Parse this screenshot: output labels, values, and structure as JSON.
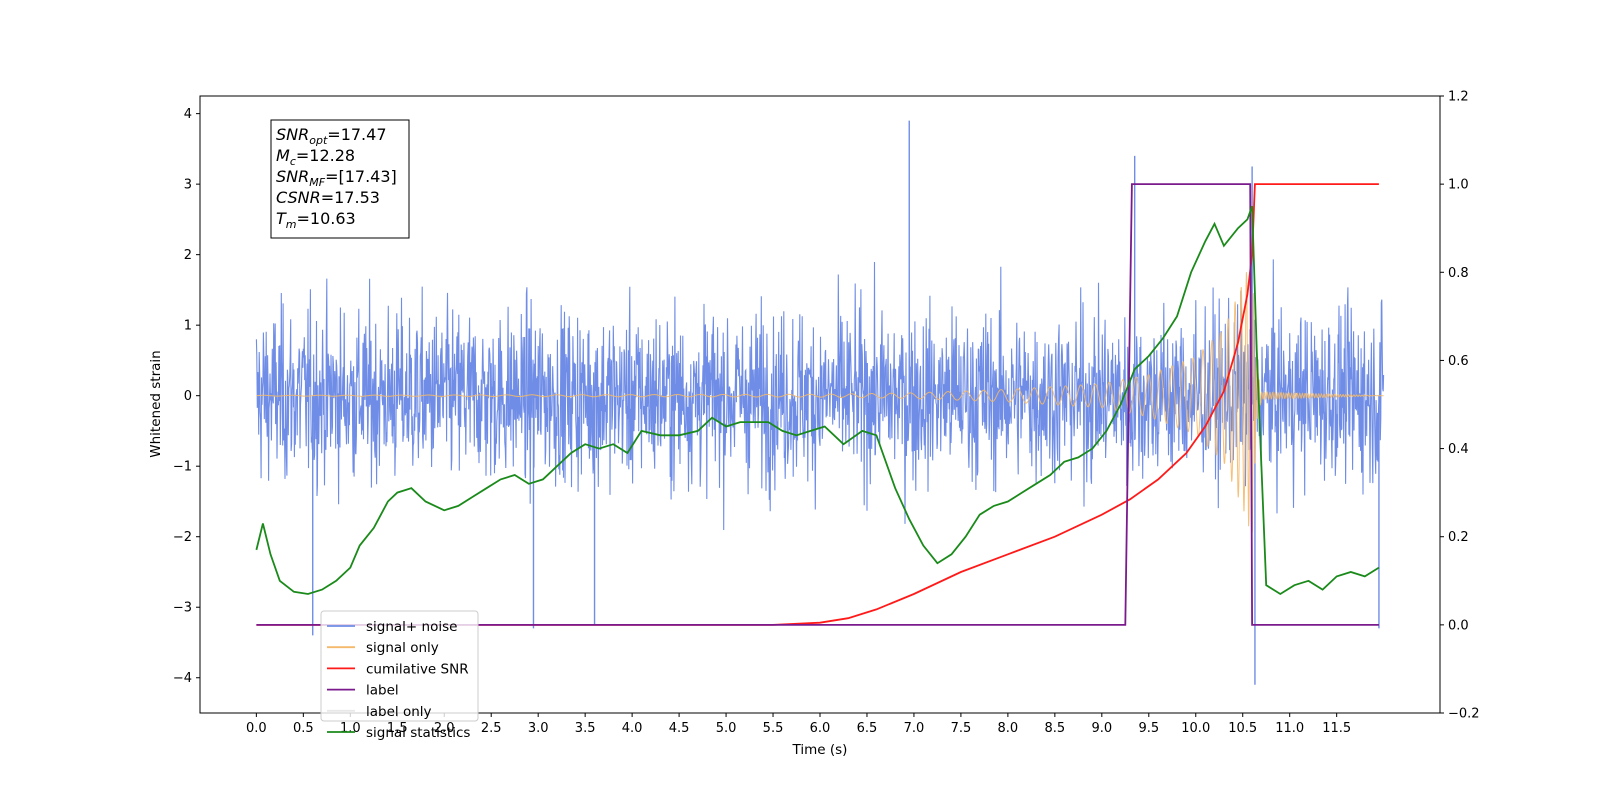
{
  "chart_data": {
    "type": "line",
    "xlabel": "Time (s)",
    "ylabel_left": "Whitened strain",
    "ylabel_right": "",
    "xlim": [
      -0.6,
      12.6
    ],
    "ylim_left": [
      -4.5,
      4.25
    ],
    "ylim_right": [
      -0.2,
      1.2
    ],
    "x_ticks": [
      "0.0",
      "0.5",
      "1.0",
      "1.5",
      "2.0",
      "2.5",
      "3.0",
      "3.5",
      "4.0",
      "4.5",
      "5.0",
      "5.5",
      "6.0",
      "6.5",
      "7.0",
      "7.5",
      "8.0",
      "8.5",
      "9.0",
      "9.5",
      "10.0",
      "10.5",
      "11.0",
      "11.5"
    ],
    "y_ticks_left": [
      "4",
      "3",
      "2",
      "1",
      "0",
      "−1",
      "−2",
      "−3",
      "−4"
    ],
    "y_ticks_right": [
      "1.2",
      "1.0",
      "0.8",
      "0.6",
      "0.4",
      "0.2",
      "0.0",
      "−0.2"
    ],
    "grid": false,
    "legend_position": "lower-left",
    "annotation": {
      "lines": [
        {
          "symbol": "SNR",
          "sub": "opt",
          "value": "=17.47"
        },
        {
          "symbol": "M",
          "sub": "c",
          "value": "=12.28"
        },
        {
          "symbol": "SNR",
          "sub": "MF",
          "value": "=[17.43]"
        },
        {
          "symbol": "CSNR",
          "sub": "",
          "value": "=17.53"
        },
        {
          "symbol": "T",
          "sub": "m",
          "value": "=10.63"
        }
      ]
    },
    "series": [
      {
        "name": "signal+ noise",
        "color": "#6f8de6",
        "axis": "left",
        "kind": "noise",
        "x_range": [
          0.0,
          12.0
        ],
        "envelope": {
          "typical_high": 2.3,
          "typical_low": -2.3,
          "max": 3.9,
          "min": -4.1
        },
        "spikes": [
          {
            "x": 6.95,
            "y": 3.9
          },
          {
            "x": 9.35,
            "y": 3.4
          },
          {
            "x": 10.6,
            "y": 3.25
          },
          {
            "x": 10.63,
            "y": -4.1
          },
          {
            "x": 3.6,
            "y": -3.25
          },
          {
            "x": 0.6,
            "y": -3.4
          },
          {
            "x": 11.95,
            "y": -3.3
          },
          {
            "x": 2.95,
            "y": -3.3
          }
        ]
      },
      {
        "name": "signal only",
        "color": "#f4b96a",
        "axis": "left",
        "kind": "chirp",
        "t_merger": 10.63,
        "amplitude_points": [
          [
            0.0,
            0.005
          ],
          [
            6.0,
            0.02
          ],
          [
            7.0,
            0.04
          ],
          [
            8.0,
            0.09
          ],
          [
            9.0,
            0.17
          ],
          [
            9.5,
            0.3
          ],
          [
            10.0,
            0.55
          ],
          [
            10.3,
            0.95
          ],
          [
            10.5,
            1.6
          ],
          [
            10.6,
            2.0
          ],
          [
            10.65,
            0.4
          ],
          [
            10.7,
            0.05
          ],
          [
            12.0,
            0.0
          ]
        ]
      },
      {
        "name": "cumilative SNR",
        "color": "#ff1a1a",
        "axis": "right",
        "x": [
          0.0,
          5.5,
          6.0,
          6.3,
          6.6,
          7.0,
          7.5,
          8.0,
          8.5,
          9.0,
          9.3,
          9.6,
          9.9,
          10.1,
          10.3,
          10.45,
          10.55,
          10.6,
          10.63,
          11.95
        ],
        "y": [
          0.0,
          0.0,
          0.005,
          0.015,
          0.035,
          0.07,
          0.12,
          0.16,
          0.2,
          0.25,
          0.285,
          0.33,
          0.39,
          0.45,
          0.53,
          0.64,
          0.75,
          0.84,
          1.0,
          1.0
        ]
      },
      {
        "name": "label",
        "color": "#7a1a8c",
        "axis": "right",
        "x": [
          0.0,
          9.25,
          9.32,
          10.58,
          10.6,
          11.95
        ],
        "y": [
          0.0,
          0.0,
          1.0,
          1.0,
          0.0,
          0.0
        ]
      },
      {
        "name": "label only",
        "color": "#e8e8e8",
        "axis": "right",
        "x": [],
        "y": []
      },
      {
        "name": "signal statistics",
        "color": "#1a8a1a",
        "axis": "right",
        "x": [
          0.0,
          0.07,
          0.15,
          0.25,
          0.4,
          0.55,
          0.7,
          0.85,
          1.0,
          1.1,
          1.25,
          1.4,
          1.5,
          1.65,
          1.8,
          2.0,
          2.15,
          2.3,
          2.45,
          2.6,
          2.75,
          2.9,
          3.05,
          3.2,
          3.35,
          3.5,
          3.65,
          3.8,
          3.95,
          4.1,
          4.3,
          4.5,
          4.7,
          4.85,
          5.0,
          5.15,
          5.3,
          5.45,
          5.6,
          5.75,
          5.9,
          6.05,
          6.25,
          6.45,
          6.6,
          6.8,
          6.95,
          7.1,
          7.25,
          7.4,
          7.55,
          7.7,
          7.85,
          8.0,
          8.15,
          8.3,
          8.45,
          8.6,
          8.75,
          8.9,
          9.05,
          9.2,
          9.35,
          9.5,
          9.65,
          9.8,
          9.95,
          10.1,
          10.2,
          10.3,
          10.45,
          10.55,
          10.6,
          10.65,
          10.75,
          10.9,
          11.05,
          11.2,
          11.35,
          11.5,
          11.65,
          11.8,
          11.95
        ],
        "y": [
          0.17,
          0.23,
          0.16,
          0.1,
          0.075,
          0.07,
          0.08,
          0.1,
          0.13,
          0.18,
          0.22,
          0.28,
          0.3,
          0.31,
          0.28,
          0.26,
          0.27,
          0.29,
          0.31,
          0.33,
          0.34,
          0.32,
          0.33,
          0.36,
          0.39,
          0.41,
          0.4,
          0.41,
          0.39,
          0.44,
          0.43,
          0.43,
          0.44,
          0.47,
          0.45,
          0.46,
          0.46,
          0.46,
          0.44,
          0.43,
          0.44,
          0.45,
          0.41,
          0.44,
          0.43,
          0.31,
          0.24,
          0.18,
          0.14,
          0.16,
          0.2,
          0.25,
          0.27,
          0.28,
          0.3,
          0.32,
          0.34,
          0.37,
          0.38,
          0.4,
          0.44,
          0.5,
          0.58,
          0.61,
          0.65,
          0.7,
          0.8,
          0.87,
          0.91,
          0.86,
          0.9,
          0.92,
          0.95,
          0.62,
          0.09,
          0.07,
          0.09,
          0.1,
          0.08,
          0.11,
          0.12,
          0.11,
          0.13
        ]
      }
    ]
  }
}
